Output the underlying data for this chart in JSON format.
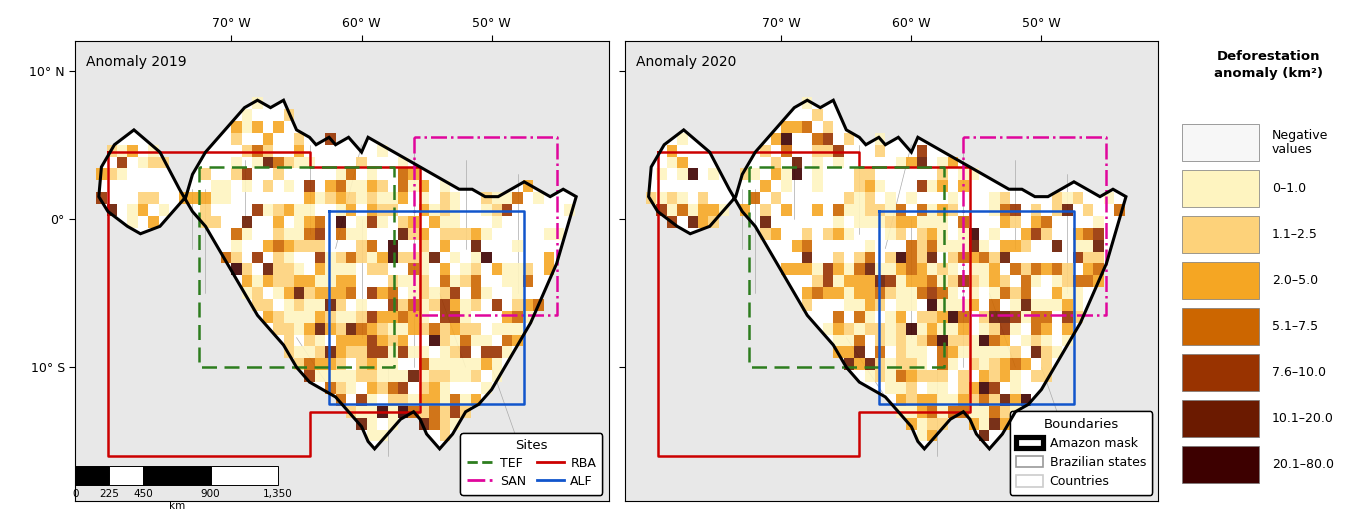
{
  "panel_titles": [
    "Anomaly 2019",
    "Anomaly 2020"
  ],
  "colorbar_title": "Deforestation\nanomaly (km²)",
  "colorbar_labels": [
    "Negative\nvalues",
    "0–1.0",
    "1.1–2.5",
    "2.0–5.0",
    "5.1–7.5",
    "7.6–10.0",
    "10.1–20.0",
    "20.1–80.0"
  ],
  "colorbar_colors": [
    "#f7f7f7",
    "#fef4c0",
    "#fdd27a",
    "#f5a623",
    "#cc6600",
    "#993300",
    "#6b1a00",
    "#3d0000"
  ],
  "legend_sites_title": "Sites",
  "legend_sites": [
    {
      "label": "TEF",
      "color": "#2d7d1e",
      "linestyle": "dashed"
    },
    {
      "label": "SAN",
      "color": "#e0069c",
      "linestyle": "dashdot"
    },
    {
      "label": "RBA",
      "color": "#cc0000",
      "linestyle": "solid"
    },
    {
      "label": "ALF",
      "color": "#1155cc",
      "linestyle": "solid"
    }
  ],
  "legend_boundaries_title": "Boundaries",
  "legend_boundaries": [
    {
      "label": "Amazon mask",
      "color": "#000000",
      "linewidth": 2.5
    },
    {
      "label": "Brazilian states",
      "color": "#999999",
      "linewidth": 0.8
    },
    {
      "label": "Countries",
      "color": "#cccccc",
      "linewidth": 0.8
    }
  ],
  "fig_width": 13.71,
  "fig_height": 5.11,
  "background_color": "#ffffff"
}
